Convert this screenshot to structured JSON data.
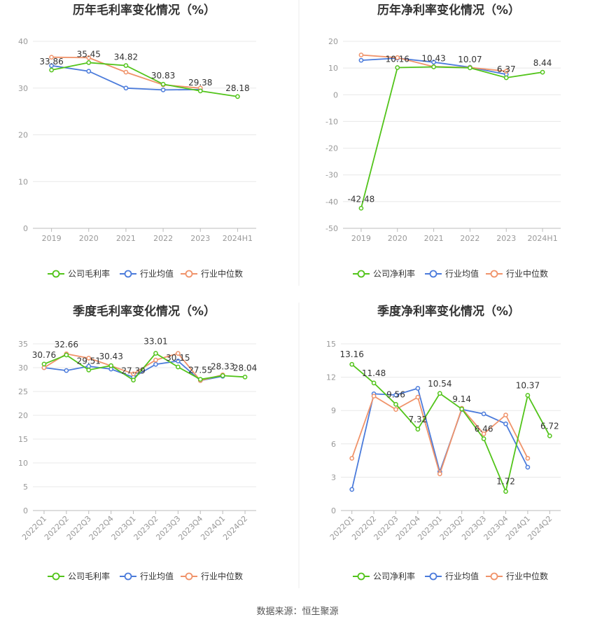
{
  "source": "数据来源：恒生聚源",
  "colors": {
    "company": "#52c41a",
    "avg": "#4b7bdb",
    "median": "#f0936a",
    "grid": "#e8e8e8",
    "axis": "#999999"
  },
  "chart_data": [
    {
      "type": "line",
      "title": "历年毛利率变化情况（%）",
      "categories": [
        "2019",
        "2020",
        "2021",
        "2022",
        "2023",
        "2024H1"
      ],
      "ylim": [
        0,
        40
      ],
      "yticks": [
        0,
        10,
        20,
        30,
        40
      ],
      "grid": true,
      "legend": "bottom",
      "series": [
        {
          "name": "公司毛利率",
          "color": "#52c41a",
          "labels": true,
          "values": [
            33.86,
            35.45,
            34.82,
            30.83,
            29.38,
            28.18
          ]
        },
        {
          "name": "行业均值",
          "color": "#4b7bdb",
          "values": [
            34.8,
            33.6,
            30.0,
            29.6,
            29.7,
            null
          ]
        },
        {
          "name": "行业中位数",
          "color": "#f0936a",
          "values": [
            36.6,
            36.5,
            33.4,
            30.7,
            30.0,
            null
          ]
        }
      ]
    },
    {
      "type": "line",
      "title": "历年净利率变化情况（%）",
      "categories": [
        "2019",
        "2020",
        "2021",
        "2022",
        "2023",
        "2024H1"
      ],
      "ylim": [
        -50,
        20
      ],
      "yticks": [
        -50,
        -40,
        -30,
        -20,
        -10,
        0,
        10,
        20
      ],
      "grid": true,
      "legend": "bottom",
      "series": [
        {
          "name": "公司净利率",
          "color": "#52c41a",
          "labels": true,
          "values": [
            -42.48,
            10.16,
            10.43,
            10.07,
            6.37,
            8.44
          ]
        },
        {
          "name": "行业均值",
          "color": "#4b7bdb",
          "values": [
            12.9,
            13.7,
            12.2,
            10.3,
            7.6,
            null
          ]
        },
        {
          "name": "行业中位数",
          "color": "#f0936a",
          "values": [
            14.9,
            13.9,
            10.5,
            10.2,
            8.8,
            null
          ]
        }
      ]
    },
    {
      "type": "line",
      "title": "季度毛利率变化情况（%）",
      "categories": [
        "2022Q1",
        "2022Q2",
        "2022Q3",
        "2022Q4",
        "2023Q1",
        "2023Q2",
        "2023Q3",
        "2023Q4",
        "2024Q1",
        "2024Q2"
      ],
      "ylim": [
        0,
        35
      ],
      "yticks": [
        0,
        5,
        10,
        15,
        20,
        25,
        30,
        35
      ],
      "grid": true,
      "legend": "bottom",
      "series": [
        {
          "name": "公司毛利率",
          "color": "#52c41a",
          "labels": true,
          "values": [
            30.76,
            32.66,
            29.51,
            30.43,
            27.39,
            33.01,
            30.15,
            27.55,
            28.33,
            28.04
          ]
        },
        {
          "name": "行业均值",
          "color": "#4b7bdb",
          "values": [
            30.0,
            29.4,
            30.3,
            29.7,
            28.0,
            30.7,
            31.4,
            27.3,
            28.2,
            null
          ]
        },
        {
          "name": "行业中位数",
          "color": "#f0936a",
          "values": [
            30.0,
            32.9,
            32.0,
            30.4,
            28.7,
            31.6,
            33.0,
            27.3,
            28.5,
            null
          ]
        }
      ]
    },
    {
      "type": "line",
      "title": "季度净利率变化情况（%）",
      "categories": [
        "2022Q1",
        "2022Q2",
        "2022Q3",
        "2022Q4",
        "2023Q1",
        "2023Q2",
        "2023Q3",
        "2023Q4",
        "2024Q1",
        "2024Q2"
      ],
      "ylim": [
        0,
        15
      ],
      "yticks": [
        0,
        3,
        6,
        9,
        12,
        15
      ],
      "grid": true,
      "legend": "bottom",
      "series": [
        {
          "name": "公司净利率",
          "color": "#52c41a",
          "labels": true,
          "values": [
            13.16,
            11.48,
            9.56,
            7.32,
            10.54,
            9.14,
            6.46,
            1.72,
            10.37,
            6.72
          ]
        },
        {
          "name": "行业均值",
          "color": "#4b7bdb",
          "values": [
            1.9,
            10.5,
            10.4,
            11.0,
            3.5,
            9.1,
            8.7,
            7.8,
            3.9,
            null
          ]
        },
        {
          "name": "行业中位数",
          "color": "#f0936a",
          "values": [
            4.7,
            10.3,
            9.1,
            10.2,
            3.3,
            9.2,
            6.9,
            8.6,
            4.7,
            null
          ]
        }
      ]
    }
  ]
}
